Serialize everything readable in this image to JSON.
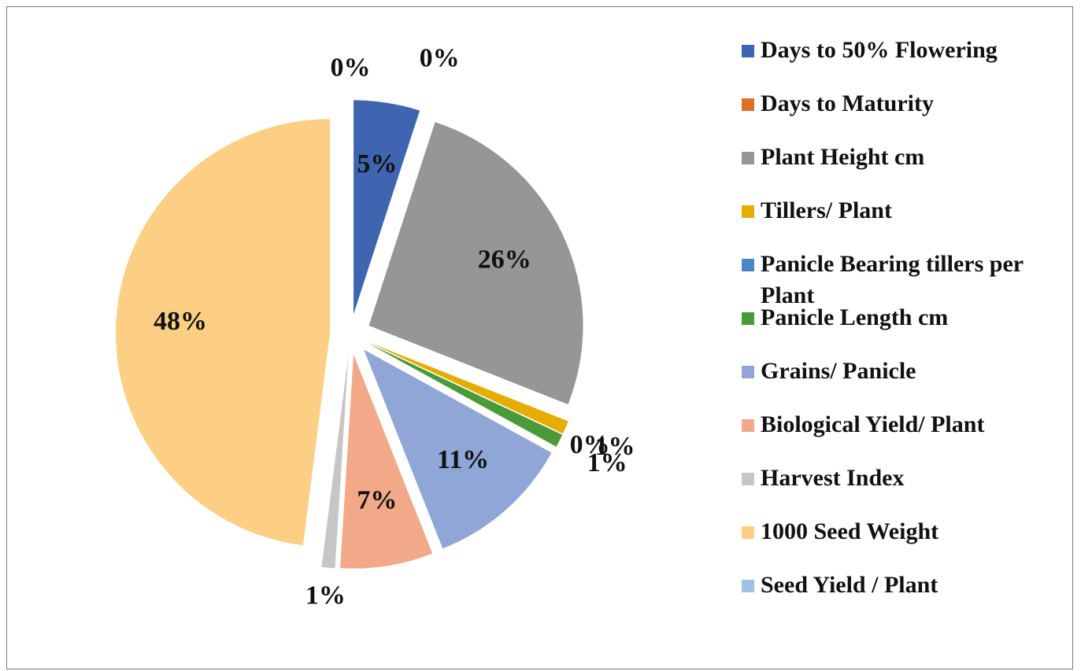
{
  "chart_data": {
    "type": "pie",
    "categories": [
      "Days to 50% Flowering",
      "Days to Maturity",
      "Plant Height cm",
      "Tillers/ Plant",
      "Panicle Bearing tillers per Plant",
      "Panicle Length cm",
      "Grains/ Panicle",
      "Biological Yield/ Plant",
      "Harvest Index",
      "1000 Seed Weight",
      "Seed Yield / Plant"
    ],
    "values": [
      5,
      0,
      26,
      1,
      0,
      1,
      11,
      7,
      1,
      48,
      0
    ],
    "value_labels": [
      "5%",
      "0%",
      "26%",
      "1%",
      "0%",
      "1%",
      "11%",
      "7%",
      "1%",
      "48%",
      "0%"
    ],
    "colors": [
      "#4065b0",
      "#e06f2a",
      "#969696",
      "#e6ac00",
      "#4a88c5",
      "#4a9a3a",
      "#8fa6d6",
      "#f2a98a",
      "#c6c6c6",
      "#fccf85",
      "#9dc3e6"
    ],
    "legend": "right"
  }
}
